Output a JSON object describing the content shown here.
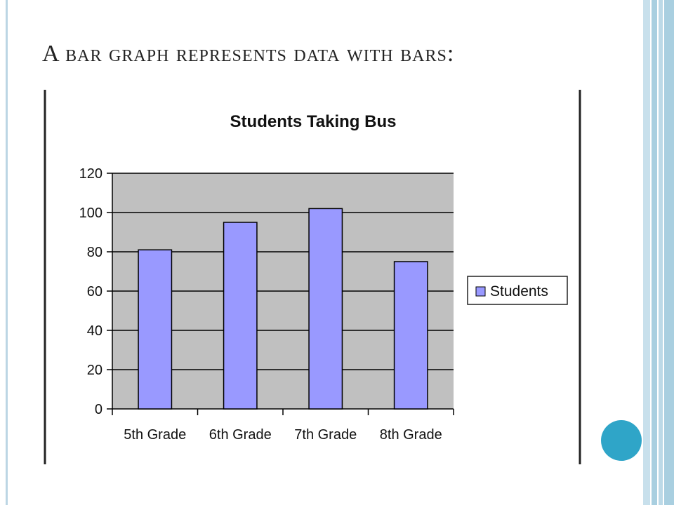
{
  "slide": {
    "title": "A bar graph represents data with bars:"
  },
  "colors": {
    "bar_fill": "#9999ff",
    "plot_bg": "#c0c0c0",
    "accent": "#2fa5c8",
    "side_stripe": "#a9cfe0"
  },
  "chart_data": {
    "type": "bar",
    "title": "Students Taking Bus",
    "categories": [
      "5th Grade",
      "6th Grade",
      "7th Grade",
      "8th Grade"
    ],
    "series": [
      {
        "name": "Students",
        "values": [
          81,
          95,
          102,
          75
        ]
      }
    ],
    "ylim": [
      0,
      120
    ],
    "yticks": [
      0,
      20,
      40,
      60,
      80,
      100,
      120
    ],
    "grid": true,
    "legend": "right"
  }
}
